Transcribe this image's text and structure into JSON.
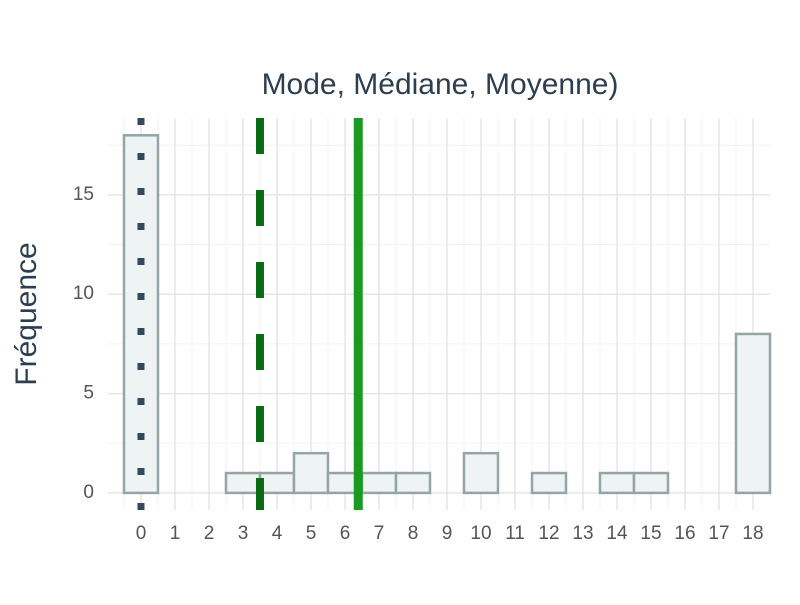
{
  "chart_data": {
    "type": "histogram",
    "title": "Mode, Médiane, Moyenne)",
    "y_label": "Fréquence",
    "bins": [
      -0.5,
      0.5,
      1.5,
      2.5,
      3.5,
      4.5,
      5.5,
      6.5,
      7.5,
      8.5,
      9.5,
      10.5,
      11.5,
      12.5,
      13.5,
      14.5,
      15.5,
      16.5,
      17.5,
      18.5
    ],
    "values": [
      18,
      0,
      0,
      1,
      1,
      2,
      1,
      1,
      1,
      0,
      2,
      0,
      1,
      0,
      1,
      1,
      0,
      0,
      8
    ],
    "fill": "#eef3f4",
    "edge_color": "#95a5a6",
    "xlim": [
      -0.97,
      18.5
    ],
    "xticks": [
      0,
      1,
      2,
      3,
      4,
      5,
      6,
      7,
      8,
      9,
      10,
      11,
      12,
      13,
      14,
      15,
      16,
      17,
      18
    ],
    "ylim": [
      -0.86,
      18.87
    ],
    "yticks": [
      0,
      5,
      10,
      15
    ],
    "grid": true,
    "reference_lines": [
      {
        "x": 0,
        "style": "dotted",
        "color": "#34495e"
      },
      {
        "x": 3.5,
        "style": "dashed",
        "color": "#0b6b14"
      },
      {
        "x": 6.39,
        "style": "solid",
        "color": "#1a9a22"
      }
    ]
  }
}
